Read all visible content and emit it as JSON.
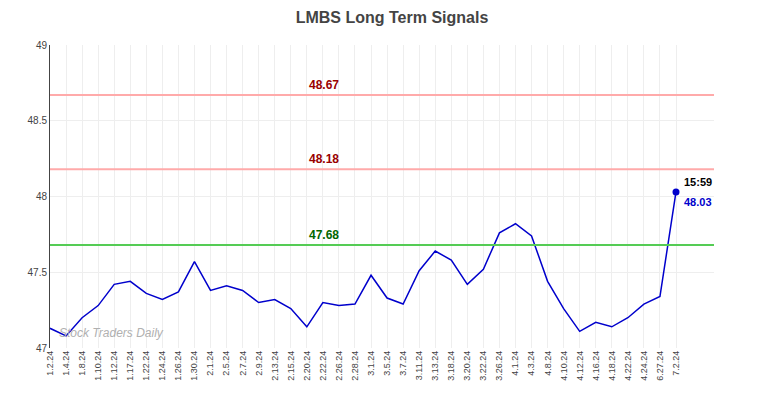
{
  "chart_data": {
    "type": "line",
    "title": "LMBS Long Term Signals",
    "categories": [
      "1.2.24",
      "1.4.24",
      "1.8.24",
      "1.10.24",
      "1.12.24",
      "1.17.24",
      "1.22.24",
      "1.24.24",
      "1.26.24",
      "1.30.24",
      "2.1.24",
      "2.5.24",
      "2.7.24",
      "2.9.24",
      "2.13.24",
      "2.15.24",
      "2.20.24",
      "2.22.24",
      "2.26.24",
      "2.28.24",
      "3.1.24",
      "3.5.24",
      "3.7.24",
      "3.11.24",
      "3.13.24",
      "3.18.24",
      "3.20.24",
      "3.22.24",
      "3.26.24",
      "4.1.24",
      "4.3.24",
      "4.8.24",
      "4.10.24",
      "4.12.24",
      "4.16.24",
      "4.18.24",
      "4.22.24",
      "4.24.24",
      "6.27.24",
      "7.2.24"
    ],
    "values": [
      47.13,
      47.08,
      47.2,
      47.28,
      47.42,
      47.44,
      47.36,
      47.32,
      47.37,
      47.57,
      47.38,
      47.41,
      47.38,
      47.3,
      47.32,
      47.26,
      47.14,
      47.3,
      47.28,
      47.29,
      47.48,
      47.33,
      47.29,
      47.51,
      47.64,
      47.58,
      47.42,
      47.52,
      47.76,
      47.82,
      47.74,
      47.44,
      47.26,
      47.11,
      47.17,
      47.14,
      47.2,
      47.29,
      47.34,
      48.03
    ],
    "color": "#0000cc",
    "ylim": [
      47.0,
      49.0
    ],
    "yticks": [
      47.0,
      47.5,
      48.0,
      48.5,
      49.0
    ],
    "grid": true,
    "reference_lines": [
      {
        "value": 48.67,
        "label": "48.67",
        "color": "#ffaaaa",
        "label_color": "#990000",
        "label_category": "2.20.24"
      },
      {
        "value": 48.18,
        "label": "48.18",
        "color": "#ffaaaa",
        "label_color": "#990000",
        "label_category": "2.20.24"
      },
      {
        "value": 47.68,
        "label": "47.68",
        "color": "#55cc55",
        "label_color": "#006600",
        "label_category": "2.20.24"
      }
    ],
    "last_label": {
      "category": "7.2.24",
      "time": "15:59",
      "value": 48.03
    },
    "watermark": "Stock Traders Daily"
  }
}
